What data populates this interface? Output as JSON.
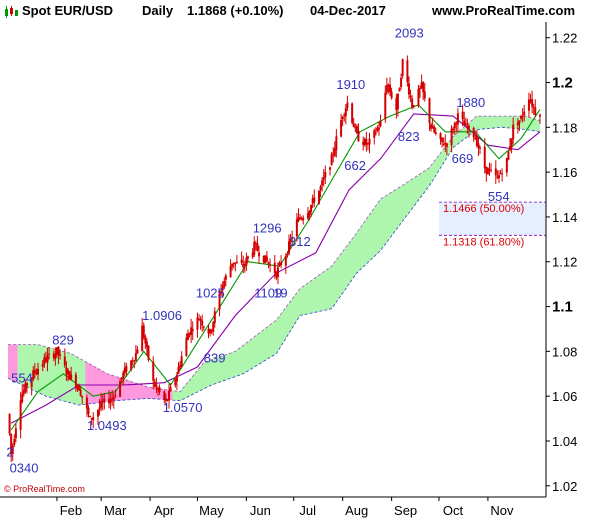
{
  "header": {
    "instrument": "Spot EUR/USD",
    "period": "Daily",
    "price": "1.1868 (+0.10%)",
    "date": "04-Dec-2017",
    "site": "www.ProRealTime.com"
  },
  "footer": {
    "copyright": "© ProRealTime.com"
  },
  "colors": {
    "candle": "#d40000",
    "fast_line": "#009900",
    "slow_line": "#8800aa",
    "cloud_bull": "#aef5ae",
    "cloud_bear": "#ff99dd",
    "wave_label": "#3333bb",
    "fib_label": "#dd0000",
    "fib_zone": "#e6efff",
    "axis": "#000000"
  },
  "chart_data": {
    "type": "candlestick",
    "title": "Spot EUR/USD",
    "xlabel": "",
    "ylabel": "",
    "ylim": [
      1.015,
      1.227
    ],
    "y_ticks": [
      "1.22",
      "1.2",
      "1.18",
      "1.16",
      "1.14",
      "1.12",
      "1.1",
      "1.08",
      "1.06",
      "1.04",
      "1.02"
    ],
    "y_ticks_bold": [
      "1.2",
      "1.1"
    ],
    "x_range": [
      "2017-01-01",
      "2017-12-04"
    ],
    "x_ticks": [
      {
        "label": "Feb",
        "date": "2017-02-01"
      },
      {
        "label": "Mar",
        "date": "2017-03-01"
      },
      {
        "label": "Apr",
        "date": "2017-04-01"
      },
      {
        "label": "May",
        "date": "2017-05-01"
      },
      {
        "label": "Jun",
        "date": "2017-06-01"
      },
      {
        "label": "Jul",
        "date": "2017-07-01"
      },
      {
        "label": "Aug",
        "date": "2017-08-01"
      },
      {
        "label": "Sep",
        "date": "2017-09-01"
      },
      {
        "label": "Oct",
        "date": "2017-10-01"
      },
      {
        "label": "Nov",
        "date": "2017-11-01"
      }
    ],
    "price_path": [
      [
        "2017-01-01",
        1.052
      ],
      [
        "2017-01-03",
        1.034
      ],
      [
        "2017-01-09",
        1.06
      ],
      [
        "2017-01-17",
        1.07
      ],
      [
        "2017-01-24",
        1.076
      ],
      [
        "2017-02-01",
        1.08
      ],
      [
        "2017-02-07",
        1.071
      ],
      [
        "2017-02-15",
        1.064
      ],
      [
        "2017-02-22",
        1.0493
      ],
      [
        "2017-03-01",
        1.056
      ],
      [
        "2017-03-09",
        1.06
      ],
      [
        "2017-03-15",
        1.07
      ],
      [
        "2017-03-23",
        1.079
      ],
      [
        "2017-03-27",
        1.0906
      ],
      [
        "2017-04-03",
        1.066
      ],
      [
        "2017-04-11",
        1.057
      ],
      [
        "2017-04-18",
        1.07
      ],
      [
        "2017-04-25",
        1.088
      ],
      [
        "2017-05-02",
        1.095
      ],
      [
        "2017-05-09",
        1.088
      ],
      [
        "2017-05-16",
        1.108
      ],
      [
        "2017-05-23",
        1.12
      ],
      [
        "2017-05-30",
        1.118
      ],
      [
        "2017-06-06",
        1.127
      ],
      [
        "2017-06-14",
        1.12
      ],
      [
        "2017-06-20",
        1.115
      ],
      [
        "2017-06-27",
        1.125
      ],
      [
        "2017-07-03",
        1.138
      ],
      [
        "2017-07-11",
        1.144
      ],
      [
        "2017-07-18",
        1.153
      ],
      [
        "2017-07-25",
        1.166
      ],
      [
        "2017-08-01",
        1.186
      ],
      [
        "2017-08-04",
        1.191
      ],
      [
        "2017-08-10",
        1.176
      ],
      [
        "2017-08-17",
        1.172
      ],
      [
        "2017-08-25",
        1.182
      ],
      [
        "2017-08-29",
        1.2
      ],
      [
        "2017-09-04",
        1.188
      ],
      [
        "2017-09-08",
        1.2093
      ],
      [
        "2017-09-14",
        1.19
      ],
      [
        "2017-09-20",
        1.198
      ],
      [
        "2017-09-26",
        1.18
      ],
      [
        "2017-10-02",
        1.173
      ],
      [
        "2017-10-06",
        1.173
      ],
      [
        "2017-10-13",
        1.185
      ],
      [
        "2017-10-18",
        1.18
      ],
      [
        "2017-10-24",
        1.176
      ],
      [
        "2017-10-30",
        1.162
      ],
      [
        "2017-11-07",
        1.157
      ],
      [
        "2017-11-13",
        1.165
      ],
      [
        "2017-11-17",
        1.18
      ],
      [
        "2017-11-22",
        1.184
      ],
      [
        "2017-11-27",
        1.194
      ],
      [
        "2017-12-01",
        1.187
      ],
      [
        "2017-12-04",
        1.1868
      ]
    ],
    "fast_line_path": [
      [
        "2017-01-03",
        1.045
      ],
      [
        "2017-01-20",
        1.062
      ],
      [
        "2017-02-05",
        1.07
      ],
      [
        "2017-02-24",
        1.06
      ],
      [
        "2017-03-10",
        1.062
      ],
      [
        "2017-03-28",
        1.08
      ],
      [
        "2017-04-14",
        1.065
      ],
      [
        "2017-05-01",
        1.084
      ],
      [
        "2017-05-18",
        1.103
      ],
      [
        "2017-06-02",
        1.12
      ],
      [
        "2017-06-22",
        1.118
      ],
      [
        "2017-07-10",
        1.138
      ],
      [
        "2017-07-28",
        1.16
      ],
      [
        "2017-08-12",
        1.178
      ],
      [
        "2017-08-31",
        1.185
      ],
      [
        "2017-09-18",
        1.19
      ],
      [
        "2017-10-05",
        1.178
      ],
      [
        "2017-10-24",
        1.178
      ],
      [
        "2017-11-08",
        1.166
      ],
      [
        "2017-11-22",
        1.175
      ],
      [
        "2017-12-04",
        1.188
      ]
    ],
    "slow_line_path": [
      [
        "2017-01-03",
        1.048
      ],
      [
        "2017-01-25",
        1.056
      ],
      [
        "2017-02-15",
        1.065
      ],
      [
        "2017-03-15",
        1.065
      ],
      [
        "2017-04-10",
        1.066
      ],
      [
        "2017-05-01",
        1.073
      ],
      [
        "2017-05-25",
        1.096
      ],
      [
        "2017-06-20",
        1.115
      ],
      [
        "2017-07-15",
        1.124
      ],
      [
        "2017-08-05",
        1.152
      ],
      [
        "2017-08-25",
        1.166
      ],
      [
        "2017-09-15",
        1.186
      ],
      [
        "2017-10-10",
        1.185
      ],
      [
        "2017-11-01",
        1.172
      ],
      [
        "2017-11-20",
        1.17
      ],
      [
        "2017-12-04",
        1.178
      ]
    ],
    "cloud_upper": [
      [
        "2017-01-01",
        1.083
      ],
      [
        "2017-01-20",
        1.083
      ],
      [
        "2017-02-10",
        1.079
      ],
      [
        "2017-03-05",
        1.07
      ],
      [
        "2017-03-31",
        1.064
      ],
      [
        "2017-04-20",
        1.062
      ],
      [
        "2017-05-05",
        1.075
      ],
      [
        "2017-05-25",
        1.08
      ],
      [
        "2017-06-20",
        1.094
      ],
      [
        "2017-07-05",
        1.108
      ],
      [
        "2017-07-25",
        1.118
      ],
      [
        "2017-08-10",
        1.133
      ],
      [
        "2017-08-25",
        1.148
      ],
      [
        "2017-09-10",
        1.155
      ],
      [
        "2017-09-25",
        1.162
      ],
      [
        "2017-10-10",
        1.176
      ],
      [
        "2017-10-25",
        1.185
      ],
      [
        "2017-11-10",
        1.185
      ],
      [
        "2017-11-25",
        1.185
      ],
      [
        "2017-12-04",
        1.183
      ]
    ],
    "cloud_lower": [
      [
        "2017-01-01",
        1.068
      ],
      [
        "2017-01-25",
        1.06
      ],
      [
        "2017-02-15",
        1.056
      ],
      [
        "2017-03-10",
        1.058
      ],
      [
        "2017-03-31",
        1.059
      ],
      [
        "2017-04-20",
        1.058
      ],
      [
        "2017-05-10",
        1.065
      ],
      [
        "2017-05-30",
        1.07
      ],
      [
        "2017-06-20",
        1.079
      ],
      [
        "2017-07-05",
        1.096
      ],
      [
        "2017-07-25",
        1.099
      ],
      [
        "2017-08-10",
        1.115
      ],
      [
        "2017-08-25",
        1.125
      ],
      [
        "2017-09-10",
        1.14
      ],
      [
        "2017-09-25",
        1.154
      ],
      [
        "2017-10-10",
        1.171
      ],
      [
        "2017-10-25",
        1.179
      ],
      [
        "2017-11-10",
        1.18
      ],
      [
        "2017-11-25",
        1.179
      ],
      [
        "2017-12-04",
        1.178
      ]
    ],
    "wave_labels": [
      {
        "text": "554",
        "date": "2017-01-03",
        "y": 1.066
      },
      {
        "text": "829",
        "date": "2017-01-29",
        "y": 1.083
      },
      {
        "text": "1.0493",
        "date": "2017-02-20",
        "y": 1.045
      },
      {
        "text": "1.0906",
        "date": "2017-03-27",
        "y": 1.094
      },
      {
        "text": "1.0570",
        "date": "2017-04-09",
        "y": 1.053
      },
      {
        "text": "839",
        "date": "2017-05-05",
        "y": 1.075
      },
      {
        "text": "1025",
        "date": "2017-04-30",
        "y": 1.104
      },
      {
        "text": "1109",
        "date": "2017-06-06",
        "y": 1.104
      },
      {
        "text": "19",
        "date": "2017-06-18",
        "y": 1.104
      },
      {
        "text": "1296",
        "date": "2017-06-05",
        "y": 1.133
      },
      {
        "text": "312",
        "date": "2017-06-28",
        "y": 1.127
      },
      {
        "text": "662",
        "date": "2017-08-02",
        "y": 1.161
      },
      {
        "text": "1910",
        "date": "2017-07-28",
        "y": 1.197
      },
      {
        "text": "823",
        "date": "2017-09-05",
        "y": 1.174
      },
      {
        "text": "2093",
        "date": "2017-09-03",
        "y": 1.22
      },
      {
        "text": "1880",
        "date": "2017-10-12",
        "y": 1.189
      },
      {
        "text": "669",
        "date": "2017-10-09",
        "y": 1.164
      },
      {
        "text": "554",
        "date": "2017-11-01",
        "y": 1.147
      },
      {
        "text": "0340",
        "date": "2017-01-02",
        "y": 1.026
      },
      {
        "text": "2",
        "date": "2016-12-31",
        "y": 1.033
      }
    ],
    "fib_levels": [
      {
        "label": "1.1466 (50.00%)",
        "value": 1.1466
      },
      {
        "label": "1.1318 (61.80%)",
        "value": 1.1318
      }
    ],
    "fib_zone_start": "2017-10-01"
  }
}
